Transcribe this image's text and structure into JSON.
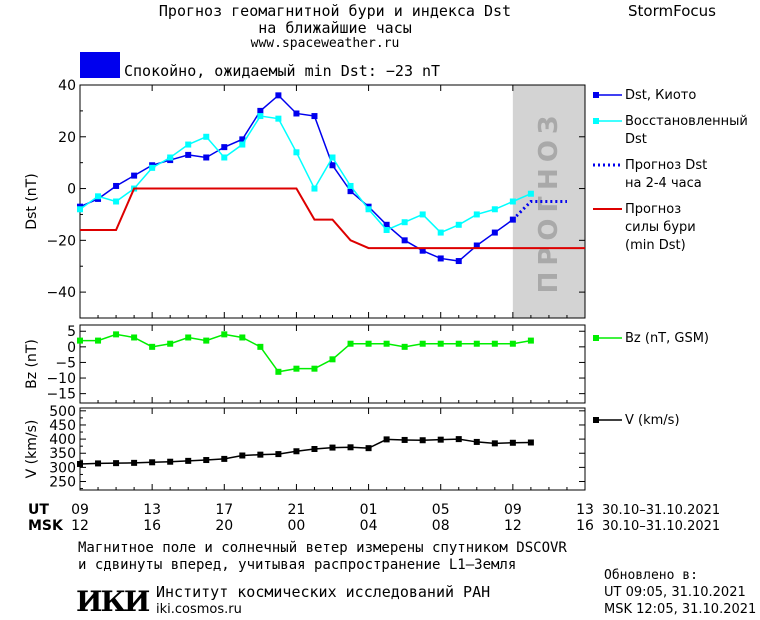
{
  "header": {
    "title_line1": "Прогноз геомагнитной бури и индекса Dst",
    "title_line2": "на ближайшие часы",
    "url": "www.spaceweather.ru",
    "brand": "StormFocus",
    "status_text": "Спокойно, ожидаемый min Dst: −23 nT",
    "status_color": "#0000ee"
  },
  "footer": {
    "line1": "Магнитное поле и солнечный ветер измерены спутником DSCOVR",
    "line2": "и сдвинуты вперед, учитывая распространение L1–Земля",
    "institute": "Институт космических исследований РАН",
    "institute_url": "iki.cosmos.ru",
    "logo_text": "ИКИ",
    "updated_label": "Обновлено в:",
    "updated_ut": "UT  09:05, 31.10.2021",
    "updated_msk": "MSK 12:05, 31.10.2021"
  },
  "colors": {
    "dst_kyoto": "#0000ee",
    "dst_restored": "#00ffff",
    "storm_forecast": "#dd0000",
    "bz": "#00ee00",
    "v": "#000000",
    "forecast_zone": "#d3d3d3",
    "forecast_text": "#a9a9a9"
  },
  "chart_data": {
    "type": "line",
    "x_axis": {
      "ut_label": "UT",
      "msk_label": "MSK",
      "ut_ticks": [
        "09",
        "13",
        "17",
        "21",
        "01",
        "05",
        "09",
        "13"
      ],
      "msk_ticks": [
        "12",
        "16",
        "20",
        "00",
        "04",
        "08",
        "12",
        "16"
      ],
      "tick_hours": [
        0,
        4,
        8,
        12,
        16,
        20,
        24,
        28
      ],
      "date_range_ut": "30.10–31.10.2021",
      "date_range_msk": "30.10–31.10.2021",
      "xlim_hours": [
        0,
        28
      ]
    },
    "forecast_zone": {
      "start_hour": 24,
      "end_hour": 28,
      "label": "ПРОГНОЗ"
    },
    "panels": [
      {
        "name": "dst",
        "ylabel": "Dst (nT)",
        "ylim": [
          -50,
          40
        ],
        "yticks": [
          -40,
          -20,
          0,
          20,
          40
        ],
        "series": [
          {
            "name": "Dst, Киото",
            "style": "line-squares",
            "color": "#0000ee",
            "x": [
              0,
              1,
              2,
              3,
              4,
              5,
              6,
              7,
              8,
              9,
              10,
              11,
              12,
              13,
              14,
              15,
              16,
              17,
              18,
              19,
              20,
              21,
              22,
              23,
              24
            ],
            "y": [
              -7,
              -4,
              1,
              5,
              9,
              11,
              13,
              12,
              16,
              19,
              30,
              36,
              29,
              28,
              9,
              -1,
              -7,
              -14,
              -20,
              -24,
              -27,
              -28,
              -22,
              -17,
              -12
            ]
          },
          {
            "name": "Восстановленный Dst",
            "style": "line-squares",
            "color": "#00ffff",
            "x": [
              0,
              1,
              2,
              3,
              4,
              5,
              6,
              7,
              8,
              9,
              10,
              11,
              12,
              13,
              14,
              15,
              16,
              17,
              18,
              19,
              20,
              21,
              22,
              23,
              24,
              25
            ],
            "y": [
              -8,
              -3,
              -5,
              0,
              8,
              12,
              17,
              20,
              12,
              17,
              28,
              27,
              14,
              0,
              12,
              1,
              -8,
              -16,
              -13,
              -10,
              -17,
              -14,
              -10,
              -8,
              -5,
              -2
            ]
          },
          {
            "name": "Прогноз Dst на 2-4 часа",
            "style": "dotted",
            "color": "#0000ee",
            "x": [
              24,
              25,
              26,
              27
            ],
            "y": [
              -12,
              -5,
              -5,
              -5
            ]
          },
          {
            "name": "Прогноз силы бури (min Dst)",
            "style": "step",
            "color": "#dd0000",
            "x": [
              0,
              2,
              3,
              12,
              13,
              14,
              15,
              16,
              28
            ],
            "y": [
              -16,
              -16,
              0,
              0,
              -12,
              -12,
              -20,
              -23,
              -23
            ]
          }
        ]
      },
      {
        "name": "bz",
        "ylabel": "Bz (nT)",
        "ylim": [
          -18,
          7
        ],
        "yticks": [
          -15,
          -10,
          -5,
          0,
          5
        ],
        "series": [
          {
            "name": "Bz (nT, GSM)",
            "style": "line-squares",
            "color": "#00ee00",
            "x": [
              0,
              1,
              2,
              3,
              4,
              5,
              6,
              7,
              8,
              9,
              10,
              11,
              12,
              13,
              14,
              15,
              16,
              17,
              18,
              19,
              20,
              21,
              22,
              23,
              24,
              25
            ],
            "y": [
              2,
              2,
              4,
              3,
              0,
              1,
              3,
              2,
              4,
              3,
              0,
              -8,
              -7,
              -7,
              -4,
              1,
              1,
              1,
              0,
              1,
              1,
              1,
              1,
              1,
              1,
              2
            ]
          }
        ]
      },
      {
        "name": "v",
        "ylabel": "V (km/s)",
        "ylim": [
          220,
          510
        ],
        "yticks": [
          250,
          300,
          350,
          400,
          450,
          500
        ],
        "series": [
          {
            "name": "V (km/s)",
            "style": "line-squares",
            "color": "#000000",
            "x": [
              0,
              1,
              2,
              3,
              4,
              5,
              6,
              7,
              8,
              9,
              10,
              11,
              12,
              13,
              14,
              15,
              16,
              17,
              18,
              19,
              20,
              21,
              22,
              23,
              24,
              25
            ],
            "y": [
              312,
              314,
              315,
              316,
              318,
              320,
              323,
              326,
              330,
              342,
              345,
              347,
              357,
              365,
              370,
              371,
              368,
              399,
              397,
              396,
              398,
              400,
              390,
              385,
              387,
              388
            ]
          }
        ]
      }
    ]
  }
}
